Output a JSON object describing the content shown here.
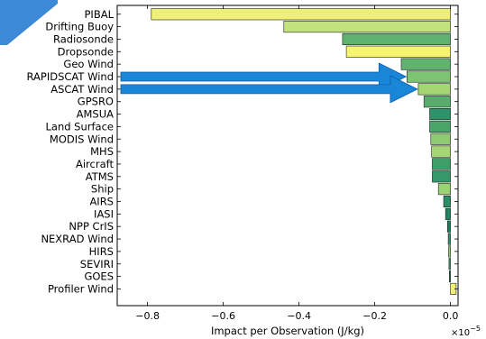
{
  "chart_data": {
    "type": "bar",
    "orientation": "horizontal",
    "title": "",
    "xlabel": "Impact per Observation (J/kg)",
    "ylabel": "",
    "x_multiplier_label": "×10",
    "x_multiplier_exponent": "−5",
    "xlim": [
      -0.88,
      0.02
    ],
    "xticks": [
      -0.8,
      -0.6,
      -0.4,
      -0.2,
      0.0
    ],
    "xtick_labels": [
      "−0.8",
      "−0.6",
      "−0.4",
      "−0.2",
      "0.0"
    ],
    "grid": false,
    "legend": "none",
    "categories": [
      "PIBAL",
      "Drifting Buoy",
      "Radiosonde",
      "Dropsonde",
      "Geo Wind",
      "RAPIDSCAT Wind",
      "ASCAT Wind",
      "GPSRO",
      "AMSUA",
      "Land Surface",
      "MODIS Wind",
      "MHS",
      "Aircraft",
      "ATMS",
      "Ship",
      "AIRS",
      "IASI",
      "NPP CrIS",
      "NEXRAD Wind",
      "HIRS",
      "SEVIRI",
      "GOES",
      "Profiler Wind"
    ],
    "values": [
      -0.79,
      -0.44,
      -0.285,
      -0.275,
      -0.13,
      -0.115,
      -0.085,
      -0.07,
      -0.055,
      -0.055,
      -0.052,
      -0.05,
      -0.048,
      -0.048,
      -0.032,
      -0.018,
      -0.013,
      -0.008,
      -0.006,
      -0.005,
      -0.004,
      -0.003,
      0.015
    ],
    "colors": [
      "#eef07a",
      "#c2e37c",
      "#5fb36e",
      "#f7f56f",
      "#5fb36e",
      "#7cc471",
      "#a5d676",
      "#58ad6d",
      "#2e9268",
      "#4aa56b",
      "#8fcb72",
      "#a4d676",
      "#3e9e6a",
      "#369868",
      "#9bd274",
      "#2a8e66",
      "#1f8462",
      "#1a7f60",
      "#2e9268",
      "#8acb72",
      "#3a9a69",
      "#17795d",
      "#f2f070"
    ]
  },
  "highlight_arrow_color": "#1a86d8",
  "corner_accent_color": "#2a7fd4"
}
